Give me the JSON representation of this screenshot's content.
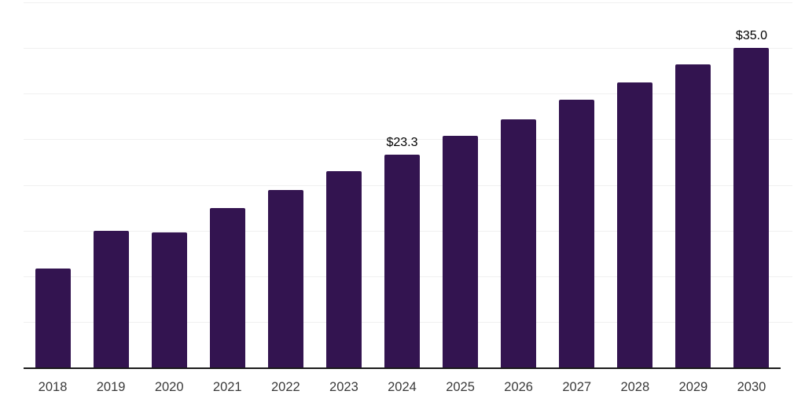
{
  "page": {
    "background": "#ffffff"
  },
  "chart_data": {
    "type": "bar",
    "title": "",
    "xlabel": "",
    "ylabel": "",
    "categories": [
      "2018",
      "2019",
      "2020",
      "2021",
      "2022",
      "2023",
      "2024",
      "2025",
      "2026",
      "2027",
      "2028",
      "2029",
      "2030"
    ],
    "values": [
      10.8,
      15.0,
      14.8,
      17.5,
      19.4,
      21.5,
      23.3,
      25.4,
      27.2,
      29.3,
      31.2,
      33.2,
      35.0
    ],
    "bar_labels": [
      "",
      "",
      "",
      "",
      "",
      "",
      "$23.3",
      "",
      "",
      "",
      "",
      "",
      "$35.0"
    ],
    "unit_prefix": "$",
    "ylim": [
      0,
      40
    ],
    "gridline_values": [
      5,
      10,
      15,
      20,
      25,
      30,
      35,
      40
    ],
    "grid": "on",
    "legend": "none",
    "y_axis_labels": "none",
    "colors": {
      "bar": "#331450",
      "gridline": "#f0f0f0",
      "axis_line": "#1a1a1a",
      "tick_label": "#3a3a3a",
      "data_label": "#000000"
    }
  }
}
